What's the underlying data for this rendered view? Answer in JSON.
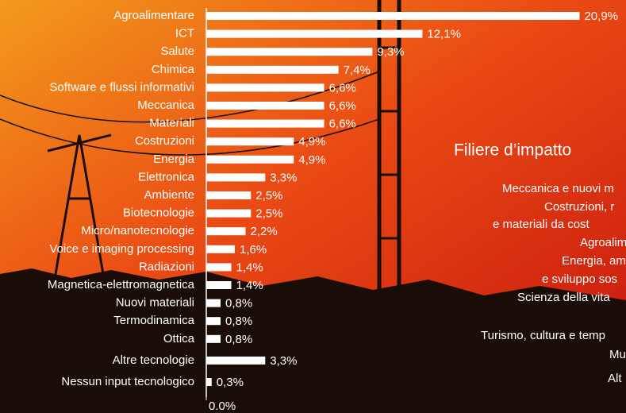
{
  "chart_data": {
    "type": "bar",
    "orientation": "horizontal",
    "color": "#ffffff",
    "categories": [
      "Agroalimentare",
      "ICT",
      "Salute",
      "Chimica",
      "Software e flussi informativi",
      "Meccanica",
      "Materiali",
      "Costruzioni",
      "Energia",
      "Elettronica",
      "Ambiente",
      "Biotecnologie",
      "Micro/nanotecnologie",
      "Voice e imaging processing",
      "Radiazioni",
      "Magnetica-elettromagnetica",
      "Nuovi materiali",
      "Termodinamica",
      "Ottica",
      "Altre tecnologie",
      "Nessun input tecnologico"
    ],
    "values": [
      20.9,
      12.1,
      9.3,
      7.4,
      6.6,
      6.6,
      6.6,
      4.9,
      4.9,
      3.3,
      2.5,
      2.5,
      2.2,
      1.6,
      1.4,
      1.4,
      0.8,
      0.8,
      0.8,
      3.3,
      0.3
    ],
    "value_labels": [
      "20,9%",
      "12,1%",
      "9,3%",
      "7,4%",
      "6,6%",
      "6,6%",
      "6,6%",
      "4,9%",
      "4,9%",
      "3,3%",
      "2,5%",
      "2,5%",
      "2,2%",
      "1,6%",
      "1,4%",
      "1,4%",
      "0,8%",
      "0,8%",
      "0,8%",
      "3,3%",
      "0,3%"
    ],
    "xlim": [
      0,
      23.5
    ],
    "xticks": [
      {
        "value": 0,
        "label": "0.0%"
      }
    ]
  },
  "filiere": {
    "title": "Filiere d’impatto",
    "items": [
      "Meccanica e nuovi m",
      "Costruzioni, r",
      "e materiali da cost",
      "Agroalim",
      "Energia, am",
      "e sviluppo sos",
      "Scienza della vita",
      "Turismo, cultura e temp",
      "Mu",
      "Alt"
    ]
  }
}
